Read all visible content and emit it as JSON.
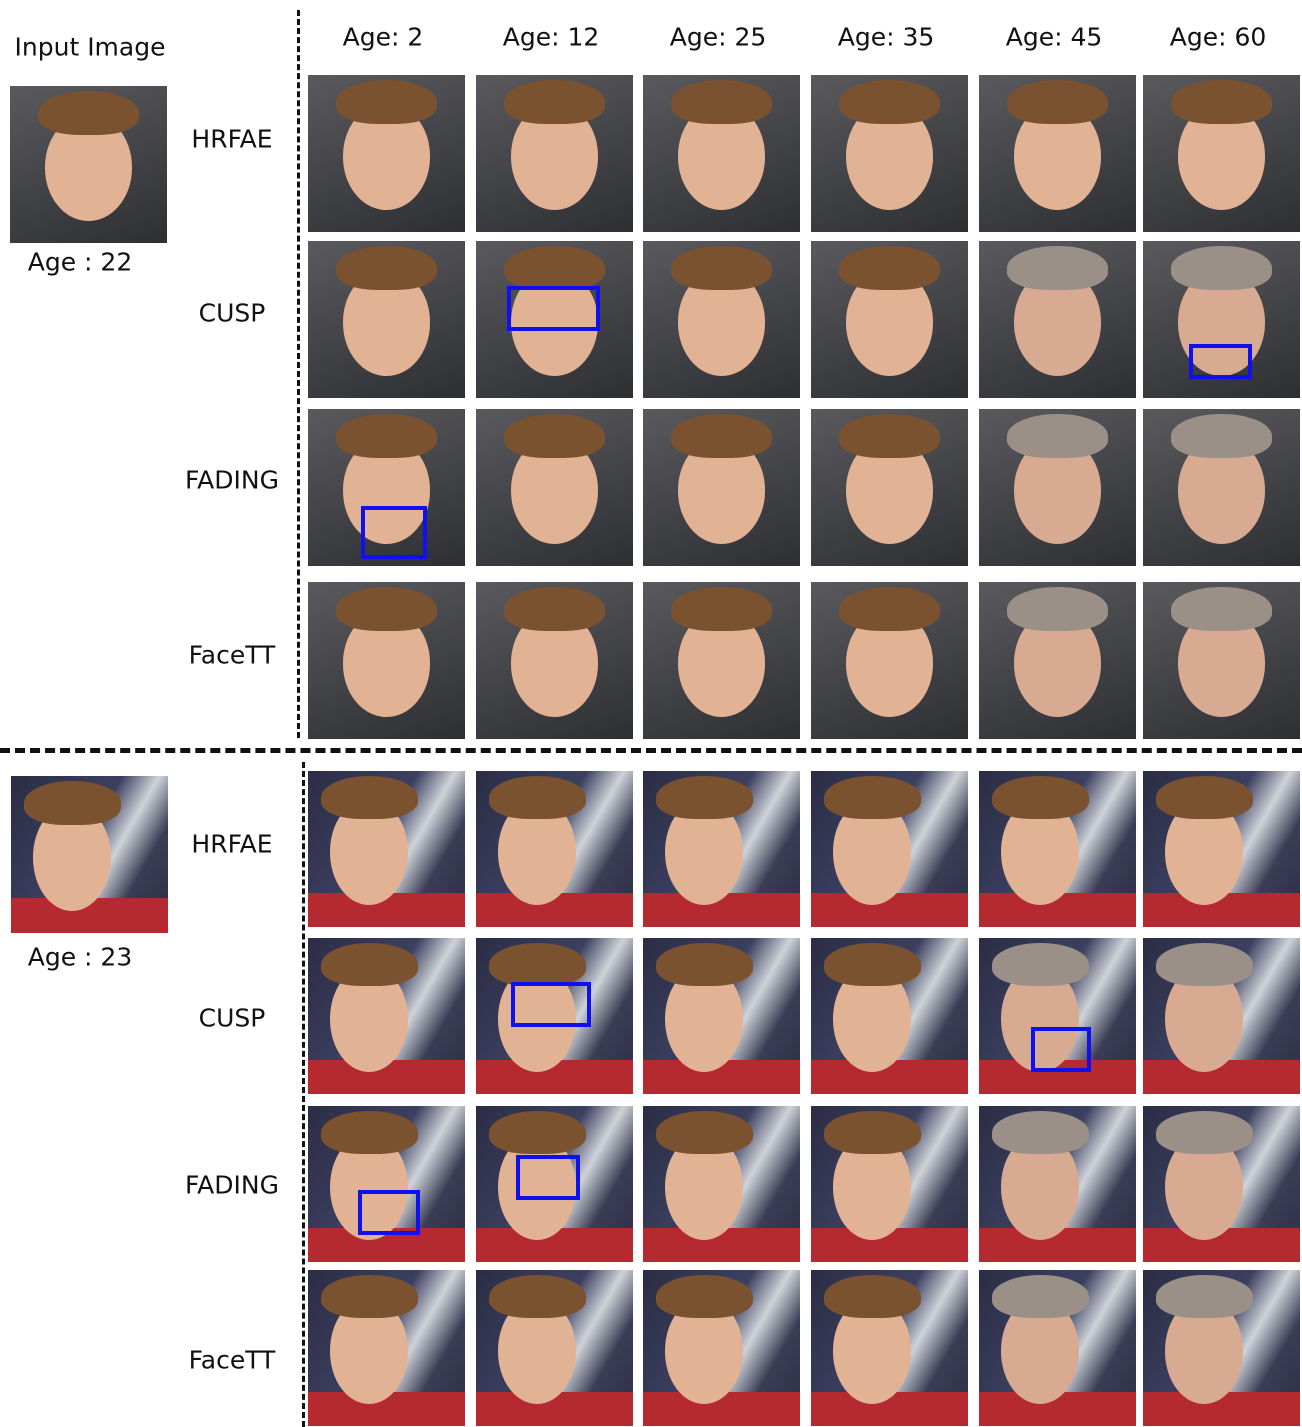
{
  "input_label": "Input Image",
  "columns": [
    "Age: 2",
    "Age: 12",
    "Age: 25",
    "Age: 35",
    "Age: 45",
    "Age: 60"
  ],
  "sections": [
    {
      "input_age": "Age : 22",
      "rows": [
        "HRFAE",
        "CUSP",
        "FADING",
        "FaceTT"
      ]
    },
    {
      "input_age": "Age : 23",
      "rows": [
        "HRFAE",
        "CUSP",
        "FADING",
        "FaceTT"
      ]
    }
  ]
}
